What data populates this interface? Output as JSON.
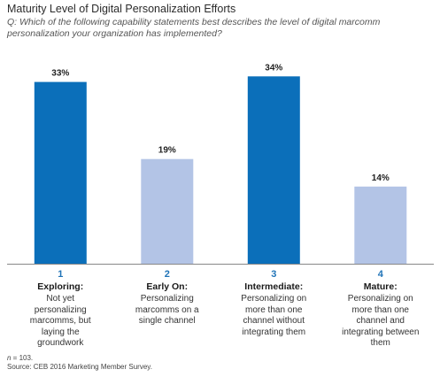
{
  "header": {
    "title": "Maturity Level of Digital Personalization Efforts",
    "question": "Q: Which of the following capability statements best describes the level of digital marcomm personalization your organization has implemented?"
  },
  "chart_data": {
    "type": "bar",
    "title": "Maturity Level of Digital Personalization Efforts",
    "xlabel": "",
    "ylabel": "",
    "ylim": [
      0,
      40
    ],
    "value_suffix": "%",
    "grid": false,
    "legend": "none",
    "categories": [
      {
        "number": "1",
        "label": "Exploring:",
        "description": "Not yet personalizing marcomms, but laying the groundwork"
      },
      {
        "number": "2",
        "label": "Early On:",
        "description": "Personalizing marcomms on a single channel"
      },
      {
        "number": "3",
        "label": "Intermediate:",
        "description": "Personalizing on more than one channel without integrating them"
      },
      {
        "number": "4",
        "label": "Mature:",
        "description": "Personalizing on more than one channel and integrating between them"
      }
    ],
    "values": [
      33,
      19,
      34,
      14
    ],
    "value_labels": [
      "33%",
      "19%",
      "34%",
      "14%"
    ],
    "colors": [
      "#0b6fba",
      "#b3c4e6",
      "#0b6fba",
      "#b3c4e6"
    ]
  },
  "footer": {
    "n_label": "n",
    "n_value": " = 103.",
    "source": "Source: CEB 2016 Marketing Member Survey."
  }
}
